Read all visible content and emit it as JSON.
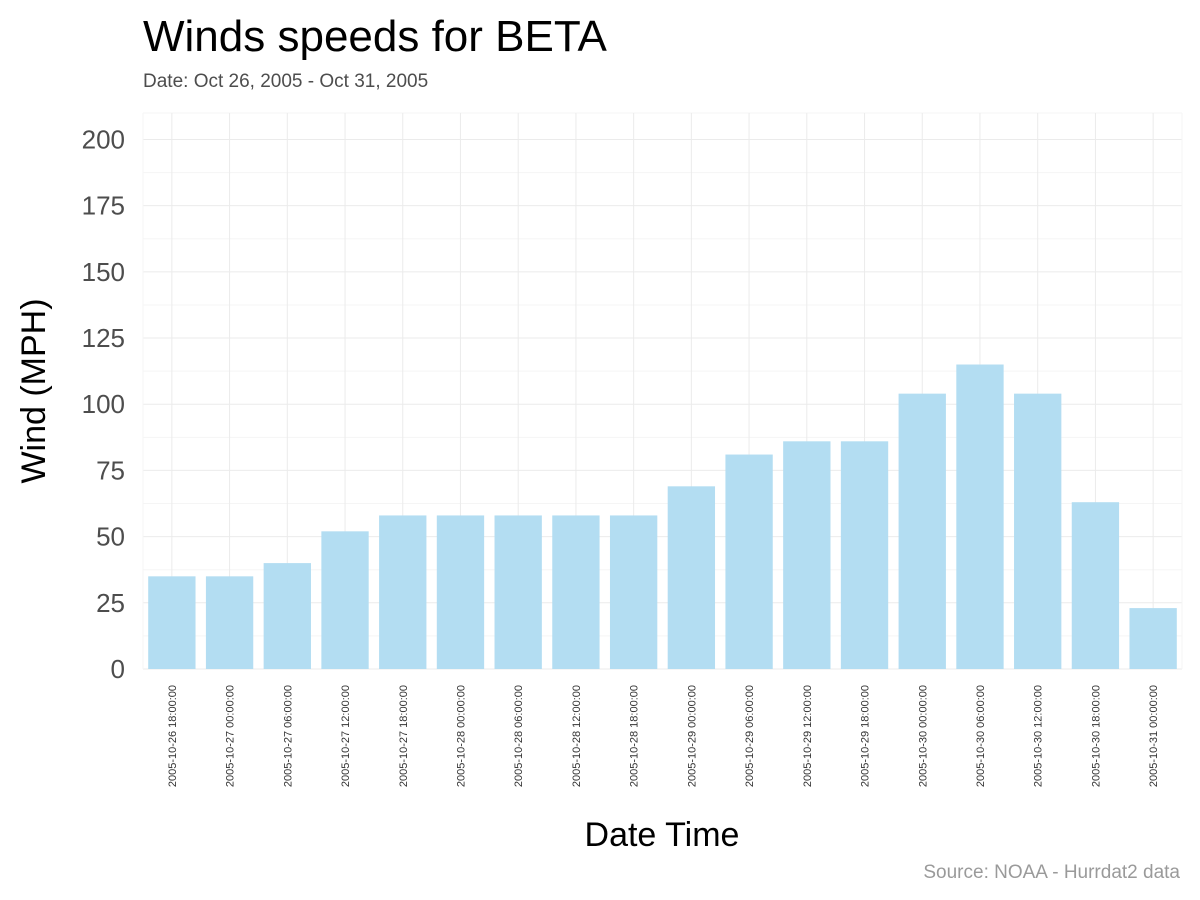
{
  "chart_data": {
    "type": "bar",
    "title": "Winds speeds for BETA",
    "subtitle": "Date:  Oct 26, 2005 - Oct 31, 2005",
    "caption": "Source: NOAA - Hurrdat2 data",
    "xlabel": "Date Time",
    "ylabel": "Wind (MPH)",
    "ylim": [
      0,
      210
    ],
    "yticks": [
      0,
      25,
      50,
      75,
      100,
      125,
      150,
      175,
      200
    ],
    "grid": true,
    "bar_color": "#b3ddf2",
    "categories": [
      "2005-10-26 18:00:00",
      "2005-10-27 00:00:00",
      "2005-10-27 06:00:00",
      "2005-10-27 12:00:00",
      "2005-10-27 18:00:00",
      "2005-10-28 00:00:00",
      "2005-10-28 06:00:00",
      "2005-10-28 12:00:00",
      "2005-10-28 18:00:00",
      "2005-10-29 00:00:00",
      "2005-10-29 06:00:00",
      "2005-10-29 12:00:00",
      "2005-10-29 18:00:00",
      "2005-10-30 00:00:00",
      "2005-10-30 06:00:00",
      "2005-10-30 12:00:00",
      "2005-10-30 18:00:00",
      "2005-10-31 00:00:00"
    ],
    "values": [
      35,
      35,
      40,
      52,
      58,
      58,
      58,
      58,
      58,
      69,
      81,
      86,
      86,
      104,
      115,
      104,
      63,
      23
    ]
  }
}
